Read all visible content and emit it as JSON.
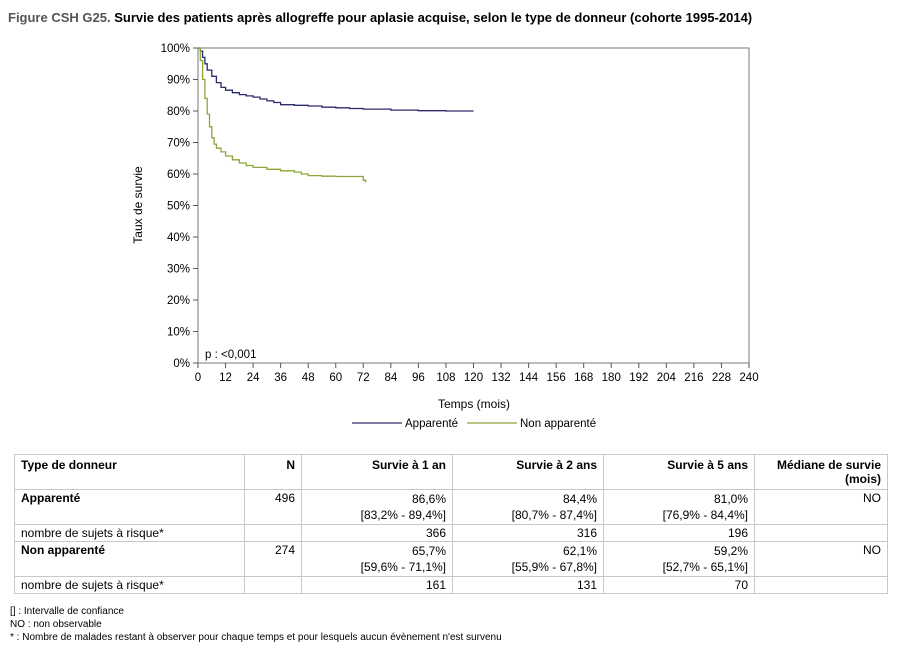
{
  "title": {
    "label": "Figure CSH G25.",
    "text": "Survie des patients après allogreffe pour aplasie acquise, selon le type de donneur (cohorte 1995-2014)"
  },
  "chart_data": {
    "type": "line",
    "xlabel": "Temps (mois)",
    "ylabel": "Taux de survie",
    "xlim": [
      0,
      240
    ],
    "ylim": [
      0,
      100
    ],
    "xticks": [
      0,
      12,
      24,
      36,
      48,
      60,
      72,
      84,
      96,
      108,
      120,
      132,
      144,
      156,
      168,
      180,
      192,
      204,
      216,
      228,
      240
    ],
    "yticks": [
      "0%",
      "10%",
      "20%",
      "30%",
      "40%",
      "50%",
      "60%",
      "70%",
      "80%",
      "90%",
      "100%"
    ],
    "annotation": "p : <0,001",
    "legend_position": "bottom-center",
    "grid": false,
    "series": [
      {
        "name": "Apparenté",
        "color": "#2b2b6b",
        "points": [
          [
            0,
            100
          ],
          [
            1,
            99
          ],
          [
            2,
            97
          ],
          [
            3,
            95
          ],
          [
            4,
            93
          ],
          [
            6,
            91
          ],
          [
            8,
            89
          ],
          [
            10,
            87.5
          ],
          [
            12,
            86.6
          ],
          [
            15,
            85.8
          ],
          [
            18,
            85.2
          ],
          [
            21,
            84.8
          ],
          [
            24,
            84.4
          ],
          [
            27,
            83.8
          ],
          [
            30,
            83.2
          ],
          [
            33,
            82.7
          ],
          [
            36,
            82
          ],
          [
            42,
            81.8
          ],
          [
            48,
            81.6
          ],
          [
            54,
            81.2
          ],
          [
            60,
            81
          ],
          [
            66,
            80.8
          ],
          [
            72,
            80.6
          ],
          [
            84,
            80.3
          ],
          [
            96,
            80.1
          ],
          [
            108,
            80
          ],
          [
            120,
            80
          ]
        ]
      },
      {
        "name": "Non apparenté",
        "color": "#8aa63a",
        "points": [
          [
            0,
            100
          ],
          [
            1,
            96
          ],
          [
            2,
            90
          ],
          [
            3,
            84
          ],
          [
            4,
            79
          ],
          [
            5,
            75
          ],
          [
            6,
            71.5
          ],
          [
            7,
            69.5
          ],
          [
            8,
            68.2
          ],
          [
            10,
            67
          ],
          [
            12,
            65.7
          ],
          [
            15,
            64.5
          ],
          [
            18,
            63.5
          ],
          [
            21,
            62.7
          ],
          [
            24,
            62.1
          ],
          [
            30,
            61.5
          ],
          [
            36,
            61
          ],
          [
            42,
            60.6
          ],
          [
            45,
            60
          ],
          [
            48,
            59.5
          ],
          [
            54,
            59.3
          ],
          [
            60,
            59.2
          ],
          [
            66,
            59.2
          ],
          [
            70,
            59.2
          ],
          [
            72,
            58
          ],
          [
            73,
            57.3
          ]
        ]
      }
    ]
  },
  "table": {
    "headers": [
      "Type de donneur",
      "N",
      "Survie à 1 an",
      "Survie à 2 ans",
      "Survie à 5 ans",
      "Médiane de survie (mois)"
    ],
    "rows": [
      {
        "label": "Apparenté",
        "n": "496",
        "s1": "86,6%",
        "ci1": "[83,2% - 89,4%]",
        "s2": "84,4%",
        "ci2": "[80,7% - 87,4%]",
        "s5": "81,0%",
        "ci5": "[76,9% - 84,4%]",
        "median": "NO"
      },
      {
        "label": "nombre de sujets à risque*",
        "r1": "366",
        "r2": "316",
        "r5": "196"
      },
      {
        "label": "Non apparenté",
        "n": "274",
        "s1": "65,7%",
        "ci1": "[59,6% - 71,1%]",
        "s2": "62,1%",
        "ci2": "[55,9% - 67,8%]",
        "s5": "59,2%",
        "ci5": "[52,7% - 65,1%]",
        "median": "NO"
      },
      {
        "label": "nombre de sujets à risque*",
        "r1": "161",
        "r2": "131",
        "r5": "70"
      }
    ]
  },
  "footnotes": [
    "[] : Intervalle de confiance",
    "NO : non observable",
    "* : Nombre de malades restant à observer pour chaque temps et pour lesquels aucun évènement n'est survenu"
  ]
}
